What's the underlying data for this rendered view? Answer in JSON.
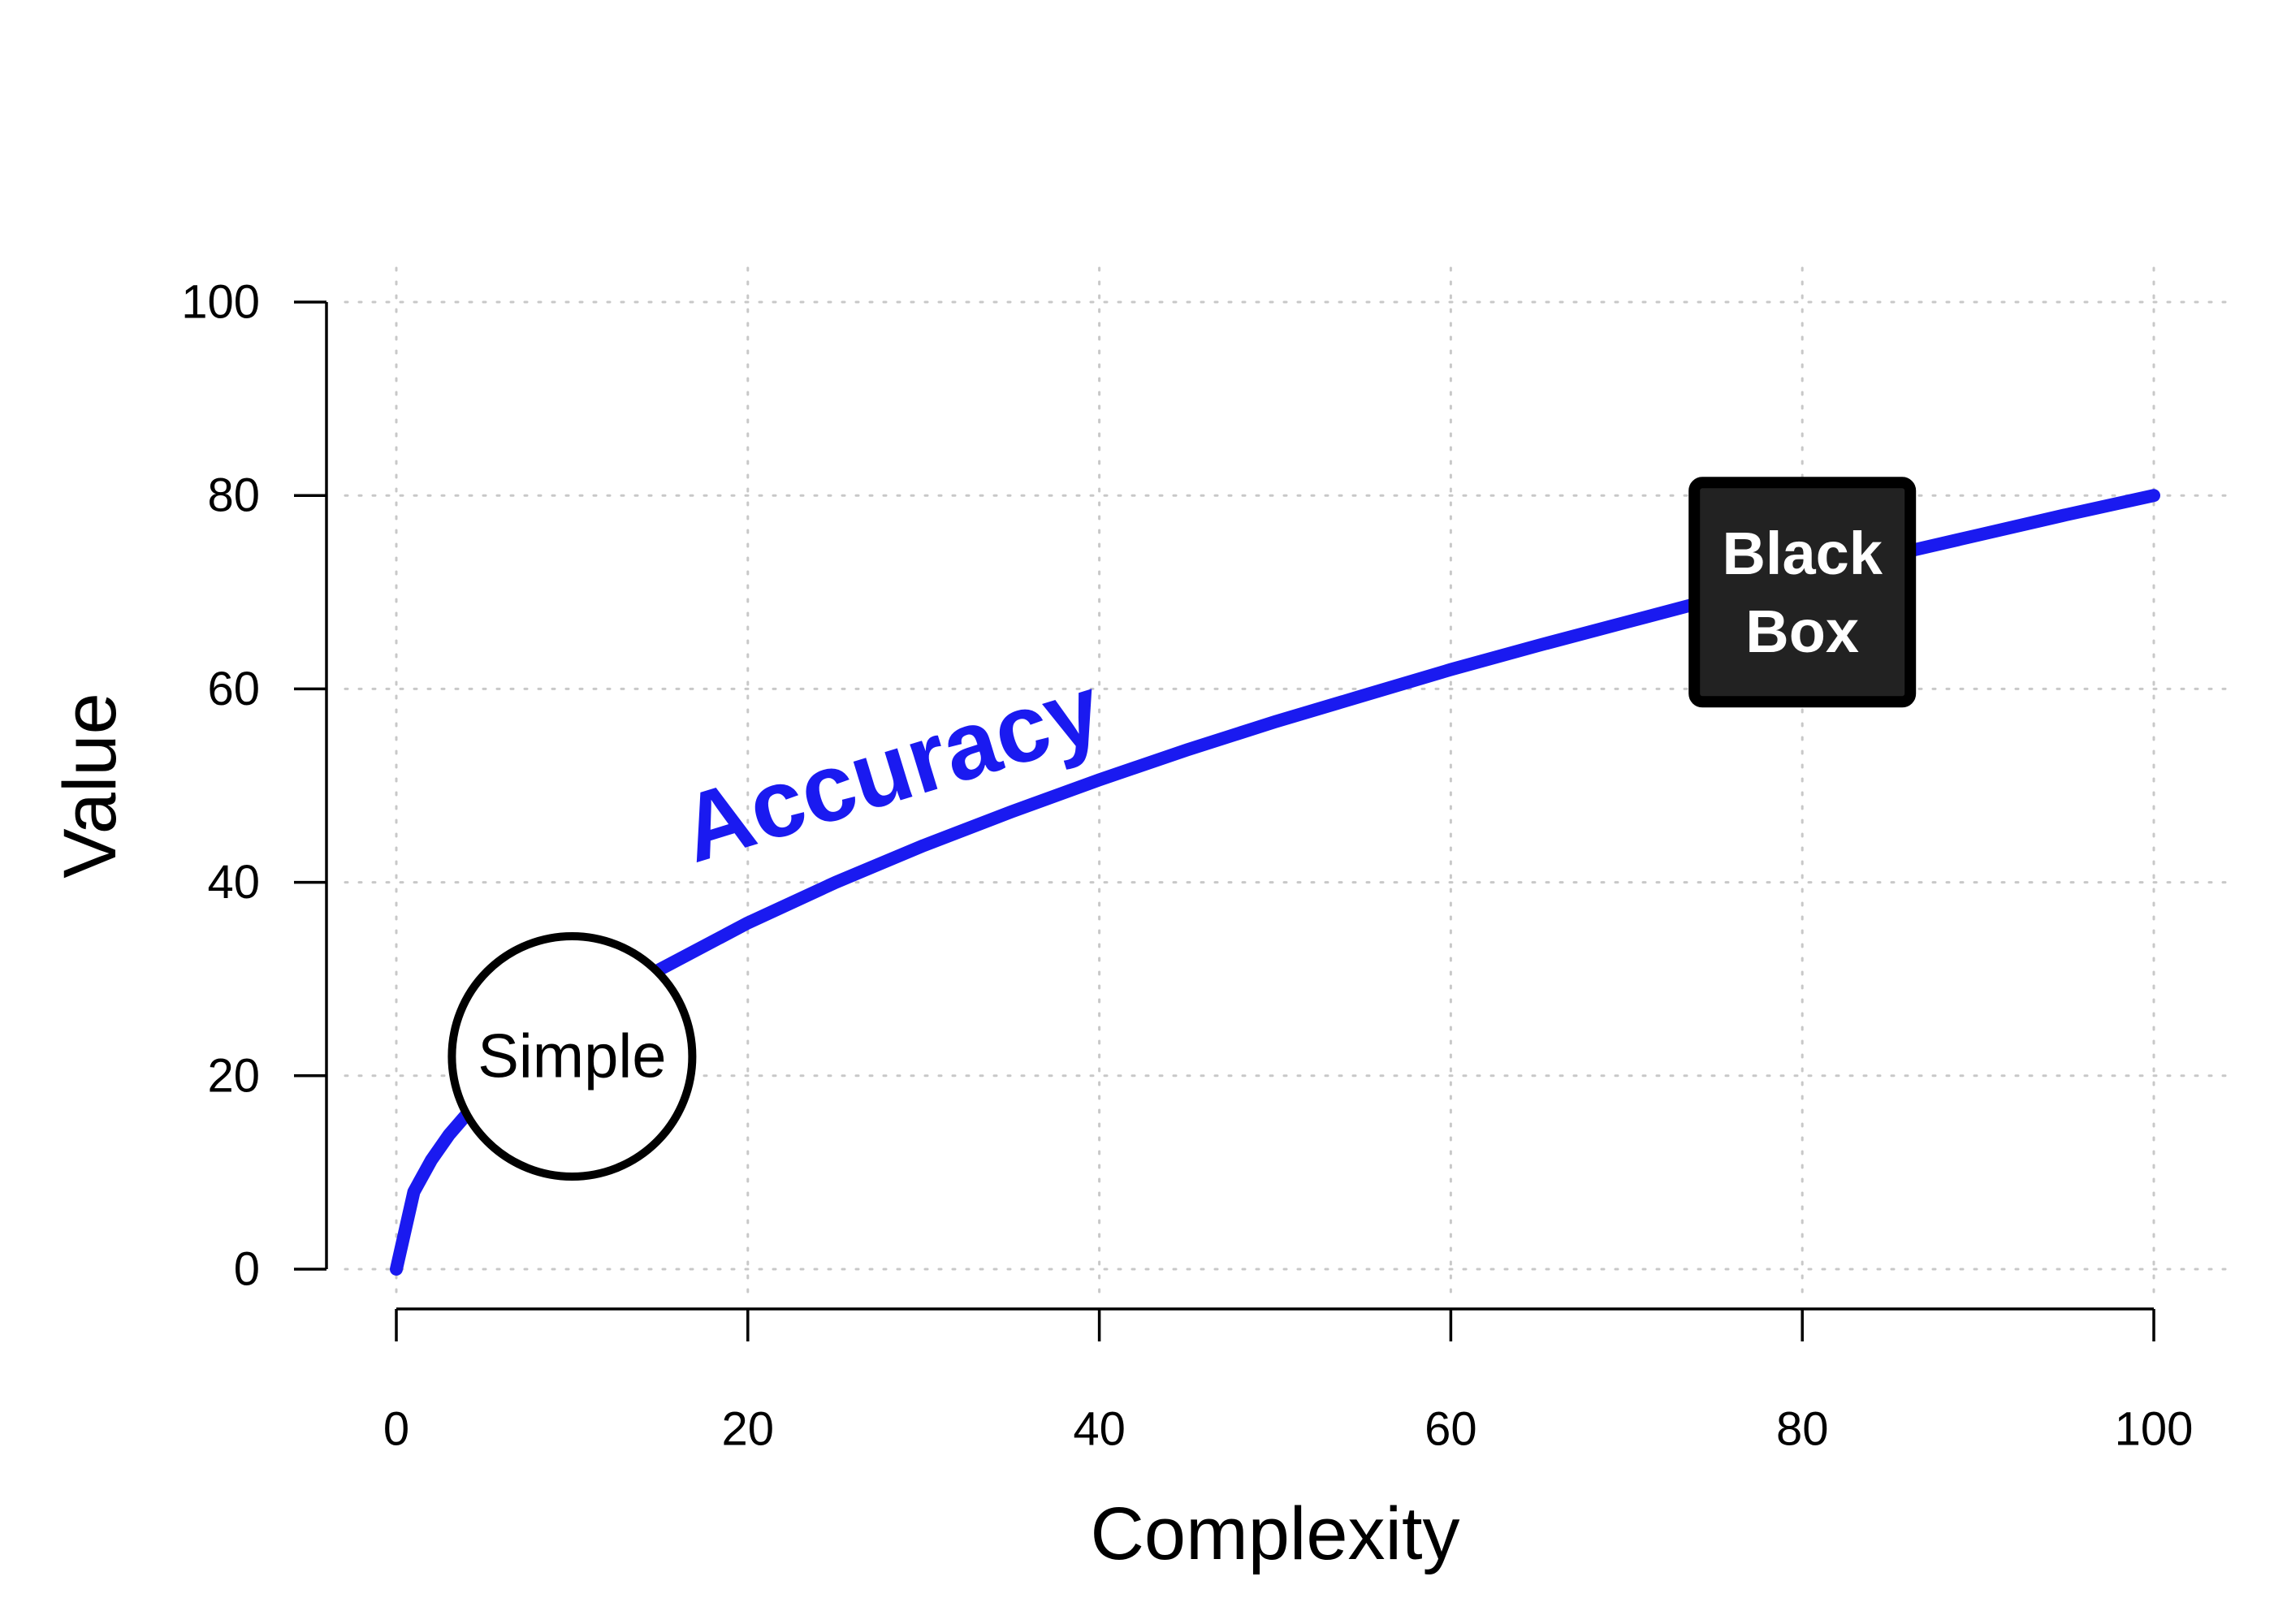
{
  "chart_data": {
    "type": "line",
    "title": "",
    "xlabel": "Complexity",
    "ylabel": "Value",
    "xlim": [
      0,
      100
    ],
    "ylim": [
      0,
      100
    ],
    "xticks": [
      0,
      20,
      40,
      60,
      80,
      100
    ],
    "yticks": [
      0,
      20,
      40,
      60,
      80,
      100
    ],
    "grid": true,
    "series": [
      {
        "name": "Accuracy",
        "color": "#1a1af0",
        "x": [
          0,
          1,
          2,
          3,
          4,
          5,
          6,
          8,
          10,
          12,
          15,
          20,
          25,
          30,
          35,
          40,
          45,
          50,
          55,
          60,
          65,
          70,
          75,
          80,
          85,
          90,
          95,
          100
        ],
        "y": [
          0,
          8,
          11.3,
          13.9,
          16,
          17.9,
          19.6,
          22.6,
          25.3,
          27.7,
          31,
          35.8,
          40,
          43.8,
          47.3,
          50.6,
          53.7,
          56.6,
          59.3,
          62,
          64.5,
          66.9,
          69.3,
          71.6,
          73.8,
          75.9,
          78,
          80
        ]
      }
    ],
    "annotations": [
      {
        "text": "Simple",
        "x": 10,
        "y": 22,
        "shape": "circle"
      },
      {
        "text_lines": [
          "Black",
          "Box"
        ],
        "x": 80,
        "y": 70,
        "shape": "square"
      }
    ]
  }
}
